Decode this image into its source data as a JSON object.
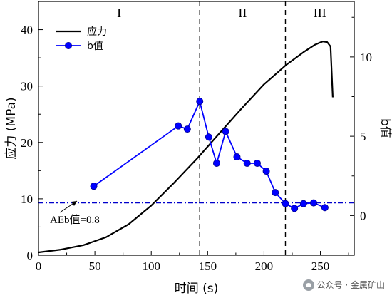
{
  "chart_data": {
    "type": "line",
    "xlabel": "时间 (s)",
    "ylabel_left": "应力 (MPa)",
    "ylabel_right": "b值",
    "xlim": [
      0,
      280
    ],
    "ylim_left": [
      0,
      45
    ],
    "ylim_right": [
      -2.5,
      13.5
    ],
    "x_ticks": [
      0,
      50,
      100,
      150,
      200,
      250
    ],
    "y_ticks_left": [
      0,
      10,
      20,
      30,
      40
    ],
    "y_ticks_right": [
      0,
      5,
      10
    ],
    "legend": {
      "placement": "top-left",
      "entries": [
        "应力",
        "b值"
      ]
    },
    "regions": {
      "labels": [
        "I",
        "II",
        "III"
      ],
      "boundaries": [
        143,
        219
      ]
    },
    "reference_line": {
      "axis": "right",
      "value": 0.8,
      "label": "AEb值=0.8",
      "color": "#0000cc"
    },
    "series": [
      {
        "name": "应力",
        "axis": "left",
        "color": "#000000",
        "x": [
          0,
          20,
          40,
          60,
          80,
          100,
          120,
          140,
          160,
          180,
          200,
          220,
          235,
          245,
          252,
          256,
          259,
          261
        ],
        "y": [
          0.5,
          1.0,
          1.8,
          3.2,
          5.5,
          8.8,
          12.8,
          17.0,
          21.5,
          26.0,
          30.3,
          33.8,
          36.0,
          37.3,
          37.9,
          37.8,
          37.0,
          28.0
        ]
      },
      {
        "name": "b值",
        "axis": "right",
        "color": "#0000ff",
        "marker": "circle",
        "x": [
          49,
          124,
          132,
          143,
          151,
          158,
          166,
          176,
          185,
          194,
          202,
          210,
          219,
          227,
          235,
          244,
          254
        ],
        "y": [
          1.85,
          5.65,
          5.45,
          7.2,
          4.95,
          3.3,
          5.3,
          3.7,
          3.3,
          3.3,
          2.8,
          1.45,
          0.75,
          0.45,
          0.75,
          0.8,
          0.5
        ]
      }
    ]
  },
  "watermark": "公众号 · 金属矿山"
}
